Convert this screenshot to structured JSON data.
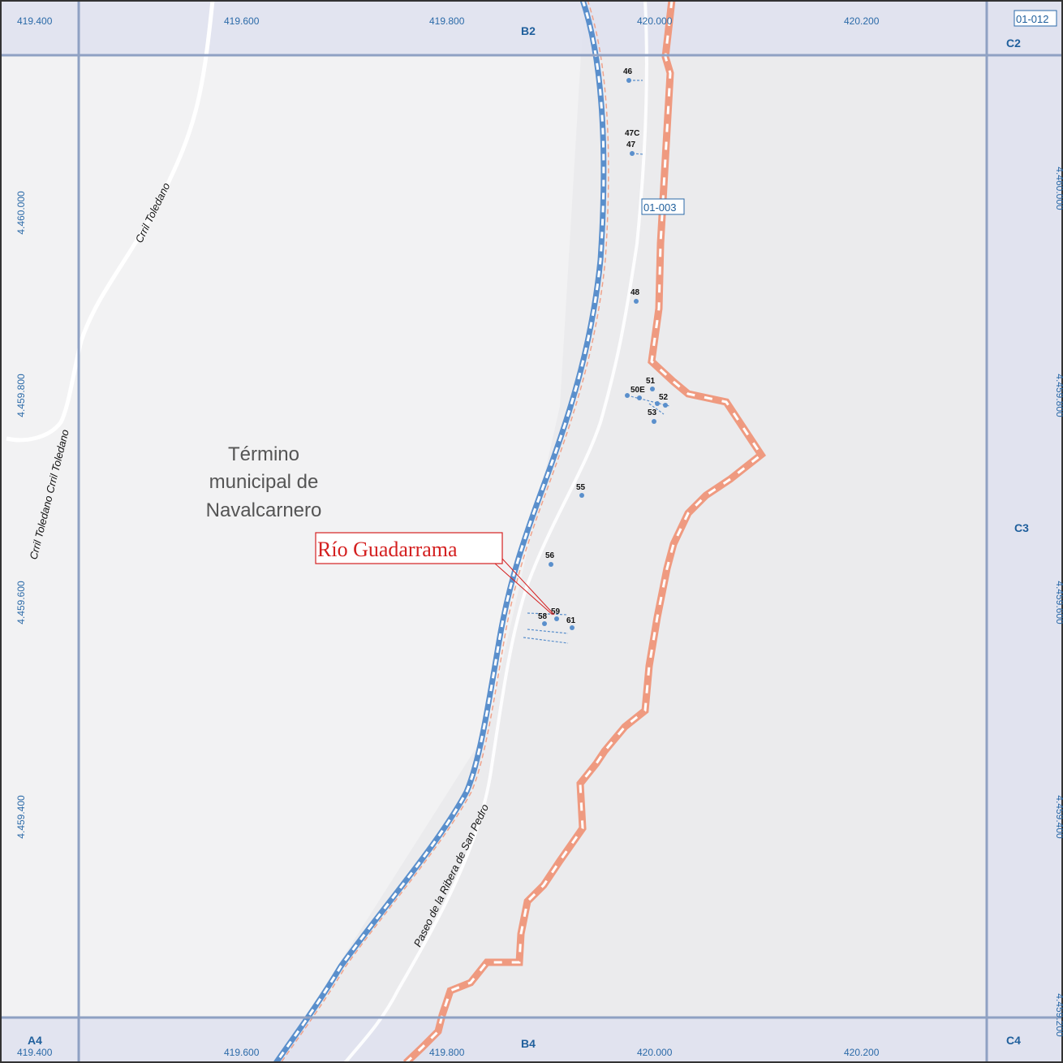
{
  "map": {
    "municipality_lines": [
      "Término",
      "municipal de",
      "Navalcarnero"
    ],
    "river_label": "Río Guadarrama",
    "sheet_labels": {
      "current": "01-003",
      "adjacent": "01-012"
    },
    "grid_cells": {
      "top_center": "B2",
      "top_right": "C2",
      "right_center": "C3",
      "bottom_left": "A4",
      "bottom_center": "B4",
      "bottom_right": "C4"
    },
    "x_coords_top": [
      "419.400",
      "419.600",
      "419.800",
      "420.000",
      "420.200"
    ],
    "x_coords_bottom": [
      "419.400",
      "419.600",
      "419.800",
      "420.000",
      "420.200"
    ],
    "y_coords_left": [
      "4.460.000",
      "4.459.800",
      "4.459.600",
      "4.459.400"
    ],
    "y_coords_right": [
      "4.460.000",
      "4.459.800",
      "4.459.600",
      "4.459.400",
      "4.459.200"
    ],
    "road_labels": {
      "upper": "Crril Toledano",
      "left": "Crril Toledano Crril Toledano",
      "paseo": "Paseo de la Ribera de San Pedro"
    },
    "points": [
      "46",
      "47C",
      "47",
      "48",
      "51",
      "50E",
      "52",
      "53",
      "55",
      "56",
      "59",
      "58",
      "61"
    ]
  },
  "colors": {
    "background": "#f2f2f3",
    "grid": "#8fa1c3",
    "band": "#dfe2ee",
    "boundary": "#ef9a80",
    "river": "#5a8fcc",
    "road": "#ffffff",
    "label_red": "#d42020"
  }
}
